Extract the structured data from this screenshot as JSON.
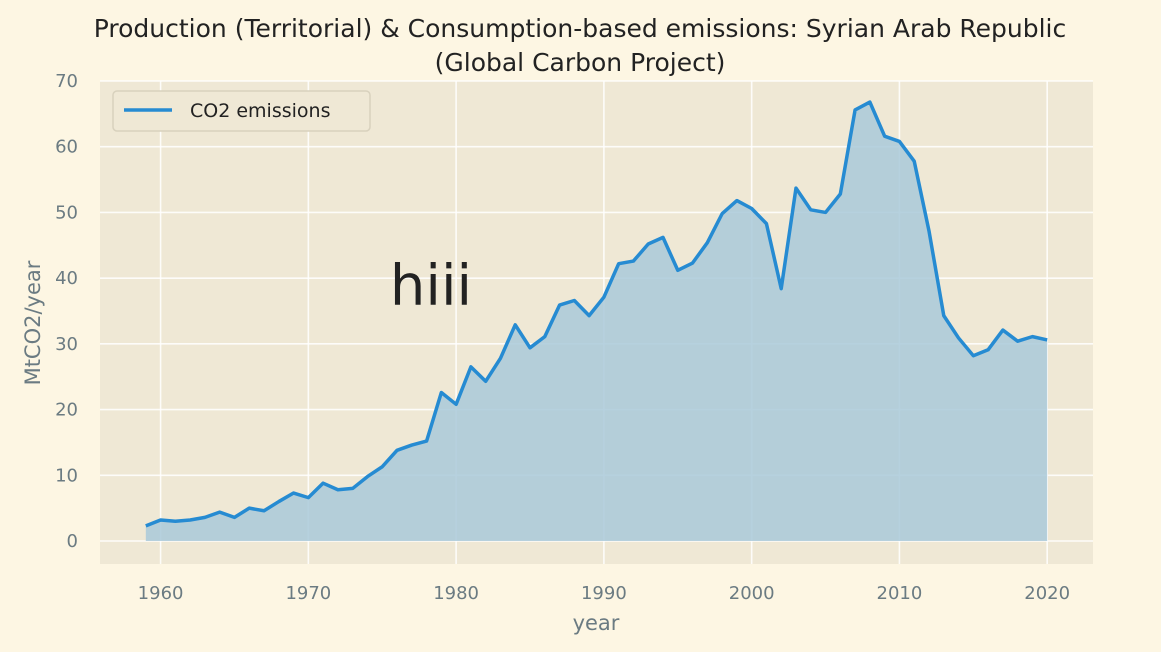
{
  "chart_data": {
    "type": "area",
    "title_line1": "Production (Territorial) & Consumption-based emissions: Syrian Arab Republic",
    "title_line2": "(Global Carbon Project)",
    "xlabel": "year",
    "ylabel": "MtCO2/year",
    "xlim": [
      1955.9,
      2023.1
    ],
    "ylim": [
      -3.5,
      70
    ],
    "xticks": [
      1960,
      1970,
      1980,
      1990,
      2000,
      2010,
      2020
    ],
    "yticks": [
      0,
      10,
      20,
      30,
      40,
      50,
      60,
      70
    ],
    "grid": true,
    "legend_position": "top-left",
    "annotation": "hiii",
    "annotation_at": {
      "x": 1978.3,
      "y": 36
    },
    "series": [
      {
        "name": "CO2 emissions",
        "color": "#268bd2",
        "fill_color": "#a9c9d9",
        "x": [
          1959,
          1960,
          1961,
          1962,
          1963,
          1964,
          1965,
          1966,
          1967,
          1968,
          1969,
          1970,
          1971,
          1972,
          1973,
          1974,
          1975,
          1976,
          1977,
          1978,
          1979,
          1980,
          1981,
          1982,
          1983,
          1984,
          1985,
          1986,
          1987,
          1988,
          1989,
          1990,
          1991,
          1992,
          1993,
          1994,
          1995,
          1996,
          1997,
          1998,
          1999,
          2000,
          2001,
          2002,
          2003,
          2004,
          2005,
          2006,
          2007,
          2008,
          2009,
          2010,
          2011,
          2012,
          2013,
          2014,
          2015,
          2016,
          2017,
          2018,
          2019,
          2020
        ],
        "values": [
          2.3,
          3.2,
          3.0,
          3.2,
          3.6,
          4.4,
          3.6,
          5.0,
          4.6,
          6.0,
          7.3,
          6.6,
          8.8,
          7.8,
          8.0,
          9.8,
          11.3,
          13.8,
          14.6,
          15.2,
          22.6,
          20.8,
          26.5,
          24.3,
          27.8,
          32.9,
          29.4,
          31.1,
          35.9,
          36.6,
          34.3,
          37.1,
          42.2,
          42.6,
          45.2,
          46.2,
          41.2,
          42.3,
          45.4,
          49.8,
          51.8,
          50.6,
          48.3,
          38.4,
          53.7,
          50.4,
          50.0,
          52.8,
          65.6,
          66.8,
          61.6,
          60.8,
          57.8,
          47.2,
          34.3,
          30.9,
          28.2,
          29.1,
          32.1,
          30.4,
          31.1,
          30.6
        ]
      }
    ]
  }
}
